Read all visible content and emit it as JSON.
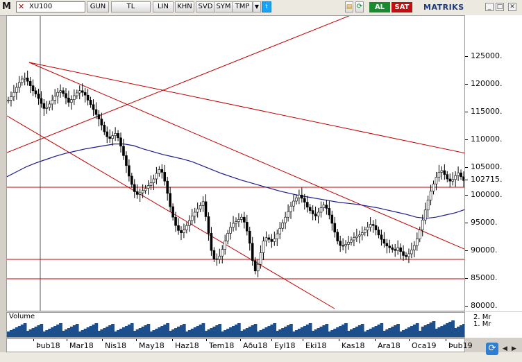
{
  "toolbar": {
    "logo": "M",
    "symbol": "XU100",
    "buttons": [
      "GUN",
      "TL",
      "LIN",
      "KHN",
      "SVD",
      "SYM",
      "TMP"
    ],
    "buy_label": "AL",
    "sell_label": "SAT",
    "brand": "MATRIKS",
    "colors": {
      "buy": "#1a8a2e",
      "sell": "#c01010"
    }
  },
  "volume_panel": {
    "title": "Volume",
    "tick_labels": [
      "2. Mr",
      "1. Mr"
    ]
  },
  "chart_data": {
    "type": "candlestick",
    "y_ticks": [
      125000,
      120000,
      115000,
      110000,
      105000,
      102715,
      100000,
      95000,
      90000,
      85000,
      80000
    ],
    "y_tick_labels": [
      "125000.",
      "120000.",
      "115000.",
      "110000.",
      "105000.",
      "102715.",
      "100000.",
      "95000.",
      "90000.",
      "85000.",
      "80000."
    ],
    "ylim": [
      77000,
      130000
    ],
    "x_ticks": [
      "Þub18",
      "Mar18",
      "Nis18",
      "May18",
      "Haz18",
      "Tem18",
      "Aðu18",
      "Eyl18",
      "Eki18",
      "Kas18",
      "Ara18",
      "Oca19",
      "Þub19"
    ],
    "last_value": 102715,
    "close_series": [
      117200,
      117800,
      118600,
      119500,
      120400,
      121000,
      121200,
      120600,
      119800,
      118900,
      118300,
      117500,
      116600,
      115700,
      115900,
      116500,
      117200,
      117900,
      118600,
      118900,
      118400,
      117600,
      116800,
      117300,
      118000,
      118500,
      118900,
      118600,
      118100,
      117200,
      116400,
      115500,
      114600,
      113800,
      112700,
      111500,
      110600,
      110300,
      110800,
      111200,
      110400,
      108900,
      107200,
      105400,
      103500,
      102000,
      100700,
      100200,
      100500,
      100900,
      101300,
      101800,
      102300,
      103000,
      104000,
      104700,
      104200,
      102600,
      100400,
      98000,
      96100,
      94600,
      93700,
      93300,
      93800,
      94600,
      95500,
      96300,
      97000,
      97600,
      98200,
      98900,
      96200,
      93200,
      90100,
      88600,
      88500,
      89100,
      90300,
      91800,
      93200,
      94300,
      95000,
      95300,
      95700,
      96100,
      95200,
      93600,
      91400,
      88300,
      86400,
      87600,
      89700,
      91800,
      92400,
      92100,
      91700,
      92200,
      93100,
      94100,
      95100,
      96100,
      97100,
      98100,
      99000,
      99600,
      100100,
      99500,
      98800,
      97900,
      97300,
      96700,
      96300,
      97000,
      97800,
      98300,
      97700,
      96500,
      95000,
      93400,
      91800,
      91000,
      90900,
      91200,
      91600,
      92000,
      92400,
      92700,
      92900,
      93300,
      93800,
      94300,
      94800,
      94600,
      93800,
      92900,
      92100,
      91400,
      90900,
      90600,
      90300,
      90100,
      90600,
      89900,
      89200,
      89000,
      89500,
      90200,
      91000,
      92200,
      93800,
      95600,
      97400,
      99200,
      100800,
      102100,
      103300,
      104200,
      104500,
      103800,
      103000,
      102600,
      102900,
      103600,
      104100,
      103400,
      102700
    ],
    "moving_average": {
      "color": "#1a1a8c",
      "values": [
        103400,
        104300,
        105200,
        105900,
        106500,
        107100,
        107600,
        108000,
        108400,
        108700,
        109000,
        109300,
        109300,
        109000,
        108400,
        107900,
        107400,
        107000,
        106600,
        106100,
        105400,
        104700,
        104000,
        103400,
        102800,
        102300,
        101800,
        101300,
        100800,
        100400,
        100000,
        99700,
        99400,
        99100,
        98800,
        98600,
        98400,
        98100,
        97800,
        97400,
        97000,
        96600,
        96100,
        95900,
        96100,
        96500,
        96900,
        97500
      ]
    },
    "trendlines": {
      "color": "#c00000"
    },
    "horizontal_levels": [
      101500,
      88500,
      85000
    ],
    "volume": {
      "color": "#1d4f8c"
    }
  }
}
